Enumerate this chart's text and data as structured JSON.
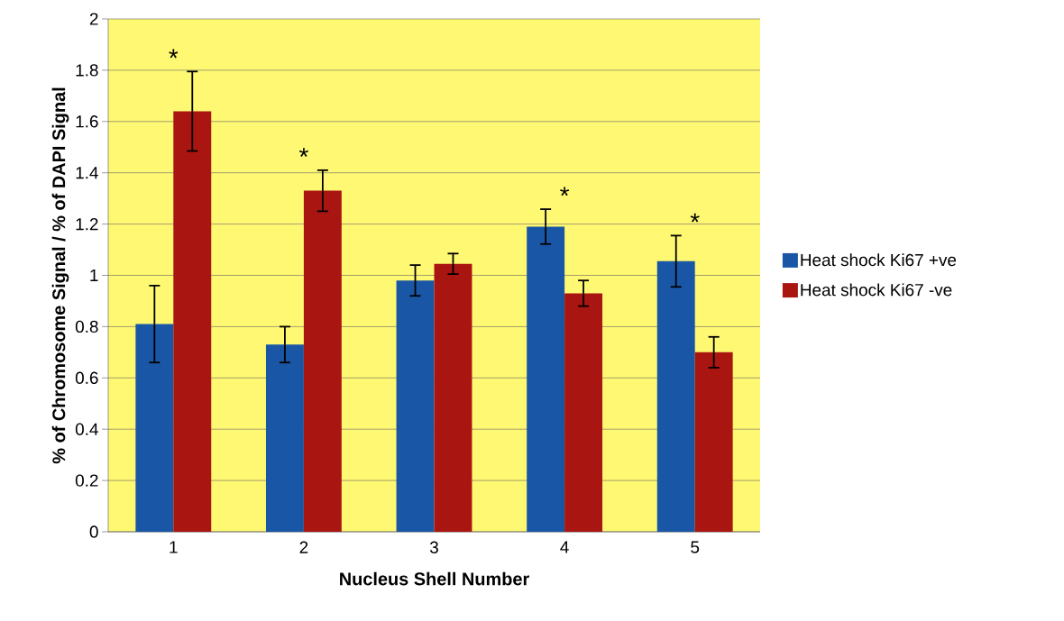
{
  "chart_data": {
    "type": "bar",
    "xlabel": "Nucleus Shell Number",
    "ylabel": "% of Chromosome Signal / % of DAPI Signal",
    "categories": [
      "1",
      "2",
      "3",
      "4",
      "5"
    ],
    "series": [
      {
        "name": "Heat shock Ki67 +ve",
        "color": "#1957a6",
        "values": [
          0.81,
          0.73,
          0.98,
          1.19,
          1.055
        ],
        "errors": [
          0.15,
          0.07,
          0.06,
          0.068,
          0.1
        ]
      },
      {
        "name": "Heat shock Ki67 -ve",
        "color": "#a91511",
        "values": [
          1.64,
          1.33,
          1.045,
          0.93,
          0.7
        ],
        "errors": [
          0.155,
          0.08,
          0.04,
          0.05,
          0.06
        ]
      }
    ],
    "ylim": [
      0,
      2
    ],
    "yticks": [
      0,
      0.2,
      0.4,
      0.6,
      0.8,
      1,
      1.2,
      1.4,
      1.6,
      1.8,
      2
    ],
    "grid": "y",
    "legend": "right",
    "annotations": [
      "*",
      "*",
      "*",
      "*"
    ]
  }
}
